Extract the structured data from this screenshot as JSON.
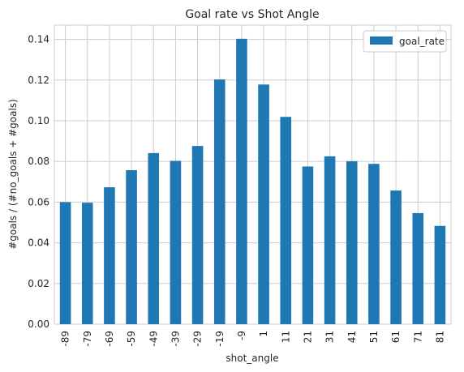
{
  "chart_data": {
    "type": "bar",
    "title": "Goal rate vs Shot Angle",
    "xlabel": "shot_angle",
    "ylabel": "#goals / (#no_goals + #goals)",
    "categories": [
      "-89",
      "-79",
      "-69",
      "-59",
      "-49",
      "-39",
      "-29",
      "-19",
      "-9",
      "1",
      "11",
      "21",
      "31",
      "41",
      "51",
      "61",
      "71",
      "81"
    ],
    "series": [
      {
        "name": "goal_rate",
        "values": [
          0.06,
          0.0597,
          0.0673,
          0.0757,
          0.0841,
          0.0803,
          0.0876,
          0.1203,
          0.1403,
          0.1178,
          0.1019,
          0.0775,
          0.0825,
          0.0801,
          0.0788,
          0.0657,
          0.0546,
          0.0483
        ],
        "color": "#1f77b4"
      }
    ],
    "ylim": [
      0,
      0.147
    ],
    "yticks": [
      "0.00",
      "0.02",
      "0.04",
      "0.06",
      "0.08",
      "0.10",
      "0.12",
      "0.14"
    ],
    "ytick_values": [
      0,
      0.02,
      0.04,
      0.06,
      0.08,
      0.1,
      0.12,
      0.14
    ],
    "grid": true,
    "legend_position": "top-right"
  }
}
